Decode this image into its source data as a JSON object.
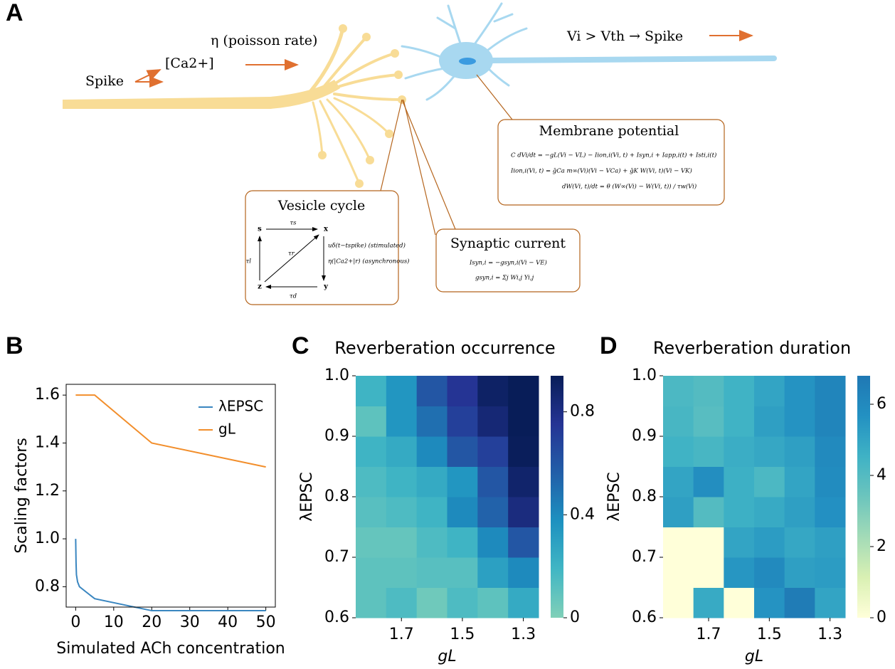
{
  "panel_labels": [
    "A",
    "B",
    "C",
    "D"
  ],
  "diagram": {
    "spike_in": "Spike",
    "calcium": "[Ca2+]",
    "poisson": "η (poisson rate)",
    "threshold": "Vi > Vth → Spike",
    "membrane": {
      "title": "Membrane potential",
      "equations": [
        "C dVi/dt = −gL(Vi − VL) − Iion,i(Vi, t) + Isyn,i + Iapp,i(t) + Isti,i(t)",
        "Iion,i(Vi, t) = ḡCa m∞(Vi)(Vi − VCa) + ḡK W(Vi, t)(Vi − VK)",
        "dW(Vi, t)/dt = θ (W∞(Vi) − W(Vi, t)) / τw(Vi)"
      ]
    },
    "vesicle": {
      "title": "Vesicle cycle",
      "states": [
        "s",
        "x",
        "y",
        "z"
      ],
      "rates": [
        "τs",
        "τr",
        "τl",
        "τd"
      ],
      "stimulated": "uδ(t−tspike) (stimulated)",
      "asynchronous": "η(|Ca2+|r) (asynchronous)"
    },
    "synaptic": {
      "title": "Synaptic current",
      "equations": [
        "Isyn,i = −gsyn,i(Vi − VE)",
        "gsyn,i = Σj Wi,j Yi,j"
      ]
    }
  },
  "chart_data": [
    {
      "type": "line",
      "xlabel": "Simulated ACh concentration",
      "ylabel": "Scaling factors",
      "xlim": [
        -2.5,
        52.5
      ],
      "xticks": [
        0,
        10,
        20,
        30,
        40,
        50
      ],
      "ylim": [
        0.715,
        1.645
      ],
      "yticks": [
        0.8,
        {
          "value": 1.0,
          "label": "1.0"
        },
        1.2,
        1.4,
        1.6
      ],
      "legend": "upper right",
      "series": [
        {
          "name": "λEPSC",
          "color": "#3a86c0",
          "x": [
            0,
            0.1,
            0.2,
            0.5,
            1,
            5,
            20,
            50
          ],
          "values": [
            1.0,
            0.9,
            0.85,
            0.82,
            0.8,
            0.75,
            0.7,
            0.7
          ]
        },
        {
          "name": "gL",
          "color": "#f28e2b",
          "x": [
            0,
            5,
            20,
            50
          ],
          "values": [
            1.6,
            1.6,
            1.4,
            1.3
          ]
        }
      ]
    },
    {
      "type": "heatmap",
      "title": "Reverberation occurrence",
      "xlabel": "gL",
      "ylabel": "λEPSC",
      "xlim": [
        1.85,
        1.25
      ],
      "xticks": [
        1.7,
        1.5,
        1.3
      ],
      "ylim": [
        0.6,
        1.0
      ],
      "yticks": [
        {
          "value": 1.0,
          "label": "1.0"
        },
        0.9,
        0.8,
        0.7,
        0.6
      ],
      "zlim": [
        0,
        0.94
      ],
      "zticks": [
        0,
        0.4,
        0.8
      ],
      "colormap": [
        "#80d0b8",
        "#41b6c4",
        "#1d91c0",
        "#225ea8",
        "#253494",
        "#081d58"
      ],
      "values": [
        [
          0.1,
          0.15,
          0.05,
          0.15,
          0.1,
          0.25
        ],
        [
          0.1,
          0.1,
          0.12,
          0.12,
          0.3,
          0.4
        ],
        [
          0.08,
          0.08,
          0.15,
          0.2,
          0.4,
          0.6
        ],
        [
          0.12,
          0.15,
          0.2,
          0.4,
          0.55,
          0.82
        ],
        [
          0.15,
          0.2,
          0.25,
          0.35,
          0.6,
          0.88
        ],
        [
          0.2,
          0.25,
          0.4,
          0.6,
          0.7,
          0.93
        ],
        [
          0.1,
          0.35,
          0.5,
          0.7,
          0.85,
          0.94
        ],
        [
          0.2,
          0.35,
          0.6,
          0.75,
          0.9,
          0.94
        ]
      ]
    },
    {
      "type": "heatmap",
      "title": "Reverberation duration",
      "xlabel": "gL",
      "ylabel": "λEPSC",
      "xlim": [
        1.85,
        1.25
      ],
      "xticks": [
        1.7,
        1.5,
        1.3
      ],
      "ylim": [
        0.6,
        1.0
      ],
      "yticks": [
        {
          "value": 1.0,
          "label": "1.0"
        },
        0.9,
        0.8,
        0.7,
        0.6
      ],
      "zlim": [
        0,
        6.8
      ],
      "zticks": [
        0,
        2,
        4,
        6
      ],
      "colormap": [
        "#ffffd9",
        "#d9f0b3",
        "#a3dbb7",
        "#6cc5bd",
        "#3fb2c5",
        "#2391c2",
        "#1f78b4"
      ],
      "values": [
        [
          0,
          4.8,
          0,
          5.6,
          6.6,
          5.0
        ],
        [
          0,
          0,
          5.5,
          6.0,
          5.2,
          5.3
        ],
        [
          0,
          0,
          5.0,
          5.3,
          4.9,
          5.2
        ],
        [
          5.2,
          4.0,
          4.6,
          4.8,
          5.2,
          5.7
        ],
        [
          5.0,
          5.8,
          4.6,
          4.2,
          5.0,
          5.9
        ],
        [
          4.5,
          4.3,
          4.7,
          4.9,
          5.2,
          6.0
        ],
        [
          4.3,
          3.9,
          4.5,
          5.2,
          5.6,
          6.2
        ],
        [
          4.2,
          4.0,
          4.5,
          5.0,
          5.6,
          6.2
        ]
      ]
    }
  ]
}
